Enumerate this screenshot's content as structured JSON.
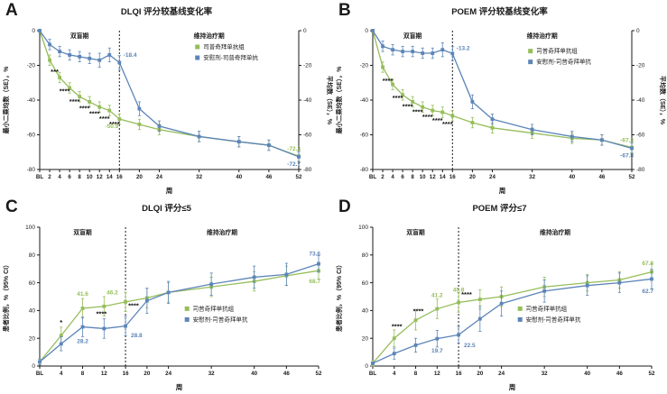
{
  "colors": {
    "green": "#96bd5a",
    "blue": "#5c85b8",
    "axis": "#1a1a1a",
    "sig": "#111111"
  },
  "chart_data": [
    {
      "id": "A",
      "type": "line",
      "title": "DLQI 评分较基线变化率",
      "xlabel": "周",
      "ylabel_left": "最小二乘均数（SE），%",
      "ylabel_right": "平均数（SE），%",
      "ylim": [
        -80,
        0
      ],
      "yticks": [
        0,
        -20,
        -40,
        -60,
        -80
      ],
      "x_max": 52,
      "xticks": [
        {
          "label": "BL",
          "week": 0
        },
        {
          "label": "2",
          "week": 2
        },
        {
          "label": "4",
          "week": 4
        },
        {
          "label": "6",
          "week": 6
        },
        {
          "label": "8",
          "week": 8
        },
        {
          "label": "10",
          "week": 10
        },
        {
          "label": "12",
          "week": 12
        },
        {
          "label": "14",
          "week": 14
        },
        {
          "label": "16",
          "week": 16
        },
        {
          "label": "20",
          "week": 20
        },
        {
          "label": "24",
          "week": 24
        },
        {
          "label": "32",
          "week": 32
        },
        {
          "label": "40",
          "week": 40
        },
        {
          "label": "46",
          "week": 46
        },
        {
          "label": "52",
          "week": 52
        }
      ],
      "phase_split_week": 16,
      "phase_labels": [
        "双盲期",
        "维持治疗期"
      ],
      "series": [
        {
          "name": "司普奇拜单抗组",
          "color_key": "green",
          "x": [
            0,
            2,
            4,
            6,
            8,
            10,
            12,
            14,
            16,
            20,
            24,
            32,
            40,
            46,
            52
          ],
          "y": [
            0,
            -17,
            -27,
            -33,
            -38,
            -41,
            -44,
            -46,
            -50.9,
            -54,
            -57,
            -61,
            -64,
            -66,
            -72.3
          ],
          "err": [
            0,
            3,
            3,
            3,
            3,
            3,
            3,
            3,
            3,
            3,
            3,
            3,
            3,
            3,
            3
          ]
        },
        {
          "name": "安慰剂-司普奇拜单抗",
          "color_key": "blue",
          "x": [
            0,
            2,
            4,
            6,
            8,
            10,
            12,
            14,
            16,
            20,
            24,
            32,
            40,
            46,
            52
          ],
          "y": [
            0,
            -8,
            -12,
            -14,
            -15,
            -16,
            -17,
            -14,
            -18.4,
            -45,
            -55,
            -61,
            -64,
            -66,
            -72.7
          ],
          "err": [
            0,
            3,
            3,
            3,
            3,
            3,
            4,
            4,
            4,
            4,
            3,
            3,
            3,
            3,
            3
          ]
        }
      ],
      "point_labels": [
        {
          "series": 0,
          "week": 16,
          "y": -55,
          "text": "-50.9",
          "anchor": "end",
          "dx": -1
        },
        {
          "series": 1,
          "week": 16.8,
          "y": -14,
          "text": "-18.4",
          "anchor": "start",
          "dx": 0
        },
        {
          "series": 0,
          "week": 52,
          "y": -68,
          "text": "-72.3",
          "anchor": "end",
          "dx": 2
        },
        {
          "series": 1,
          "week": 52,
          "y": -77,
          "text": "-72.7",
          "anchor": "end",
          "dx": 2
        }
      ],
      "sig_marks": [
        {
          "week": 3,
          "y": -25,
          "text": "***"
        },
        {
          "week": 5,
          "y": -36,
          "text": "****"
        },
        {
          "week": 7,
          "y": -42,
          "text": "****"
        },
        {
          "week": 9,
          "y": -46,
          "text": "****"
        },
        {
          "week": 11,
          "y": -49,
          "text": "****"
        },
        {
          "week": 13,
          "y": -52,
          "text": "****"
        },
        {
          "week": 15,
          "y": -55,
          "text": "****"
        }
      ],
      "legend": {
        "fx": 0.6,
        "fy": 0.13
      }
    },
    {
      "id": "B",
      "type": "line",
      "title": "POEM 评分较基线变化率",
      "xlabel": "周",
      "ylabel_left": "最小二乘均数（SE），%",
      "ylabel_right": "平均数（SE），%",
      "ylim": [
        -80,
        0
      ],
      "yticks": [
        0,
        -20,
        -40,
        -60,
        -80
      ],
      "x_max": 52,
      "xticks": [
        {
          "label": "BL",
          "week": 0
        },
        {
          "label": "2",
          "week": 2
        },
        {
          "label": "4",
          "week": 4
        },
        {
          "label": "6",
          "week": 6
        },
        {
          "label": "8",
          "week": 8
        },
        {
          "label": "10",
          "week": 10
        },
        {
          "label": "12",
          "week": 12
        },
        {
          "label": "14",
          "week": 14
        },
        {
          "label": "16",
          "week": 16
        },
        {
          "label": "20",
          "week": 20
        },
        {
          "label": "24",
          "week": 24
        },
        {
          "label": "32",
          "week": 32
        },
        {
          "label": "40",
          "week": 40
        },
        {
          "label": "46",
          "week": 46
        },
        {
          "label": "52",
          "week": 52
        }
      ],
      "phase_split_week": 16,
      "phase_labels": [
        "双盲期",
        "维持治疗期"
      ],
      "series": [
        {
          "name": "司普奇拜单抗组",
          "color_key": "green",
          "x": [
            0,
            2,
            4,
            6,
            8,
            10,
            12,
            14,
            16,
            20,
            24,
            32,
            40,
            46,
            52
          ],
          "y": [
            0,
            -21,
            -31,
            -37,
            -41,
            -44,
            -46,
            -47,
            -49,
            -53,
            -56,
            -59,
            -62,
            -63,
            -67.3
          ],
          "err": [
            0,
            3,
            3,
            3,
            3,
            3,
            3,
            3,
            3,
            3,
            3,
            3,
            3,
            3,
            3
          ]
        },
        {
          "name": "安慰剂-司普奇拜单抗",
          "color_key": "blue",
          "x": [
            0,
            2,
            4,
            6,
            8,
            10,
            12,
            14,
            16,
            20,
            24,
            32,
            40,
            46,
            52
          ],
          "y": [
            0,
            -9,
            -11,
            -12,
            -12,
            -13,
            -13,
            -11,
            -13.2,
            -41,
            -51,
            -57,
            -61,
            -63,
            -67.8
          ],
          "err": [
            0,
            3,
            3,
            3,
            3,
            3,
            3,
            4,
            4,
            4,
            3,
            3,
            3,
            3,
            3
          ]
        }
      ],
      "point_labels": [
        {
          "series": 1,
          "week": 16.8,
          "y": -10,
          "text": "-13.2",
          "anchor": "start",
          "dx": 0
        },
        {
          "series": 0,
          "week": 52,
          "y": -63,
          "text": "-67.3",
          "anchor": "end",
          "dx": 2
        },
        {
          "series": 1,
          "week": 52,
          "y": -72,
          "text": "-67.8",
          "anchor": "end",
          "dx": 2
        }
      ],
      "sig_marks": [
        {
          "week": 3,
          "y": -30,
          "text": "****"
        },
        {
          "week": 5,
          "y": -40,
          "text": "****"
        },
        {
          "week": 7,
          "y": -45,
          "text": "****"
        },
        {
          "week": 9,
          "y": -48,
          "text": "****"
        },
        {
          "week": 11,
          "y": -51,
          "text": "****"
        },
        {
          "week": 13,
          "y": -53,
          "text": "****"
        },
        {
          "week": 15,
          "y": -55,
          "text": "****"
        }
      ],
      "legend": {
        "fx": 0.6,
        "fy": 0.16
      }
    },
    {
      "id": "C",
      "type": "line",
      "title": "DLQI 评分≤5",
      "xlabel": "周",
      "ylabel_left": "患者比例，%（95% CI）",
      "ylabel_right": null,
      "ylim": [
        0,
        100
      ],
      "yticks": [
        0,
        20,
        40,
        60,
        80,
        100
      ],
      "x_max": 52,
      "xticks": [
        {
          "label": "BL",
          "week": 0
        },
        {
          "label": "4",
          "week": 4
        },
        {
          "label": "8",
          "week": 8
        },
        {
          "label": "12",
          "week": 12
        },
        {
          "label": "16",
          "week": 16
        },
        {
          "label": "20",
          "week": 20
        },
        {
          "label": "24",
          "week": 24
        },
        {
          "label": "32",
          "week": 32
        },
        {
          "label": "40",
          "week": 40
        },
        {
          "label": "46",
          "week": 46
        },
        {
          "label": "52",
          "week": 52
        }
      ],
      "phase_split_week": 16,
      "phase_labels": [
        "双盲期",
        "维持治疗期"
      ],
      "series": [
        {
          "name": "司普奇拜单抗组",
          "color_key": "green",
          "x": [
            0,
            4,
            8,
            12,
            16,
            20,
            24,
            32,
            40,
            46,
            52
          ],
          "y": [
            3,
            22,
            41.6,
            43,
            46.2,
            49,
            53,
            57,
            61,
            65,
            68.7
          ],
          "err": [
            2,
            6,
            7,
            7,
            7,
            7,
            7,
            7,
            7,
            7,
            6
          ]
        },
        {
          "name": "安慰剂-司普奇拜单抗",
          "color_key": "blue",
          "x": [
            0,
            4,
            8,
            12,
            16,
            20,
            24,
            32,
            40,
            46,
            52
          ],
          "y": [
            3,
            16,
            28.2,
            27,
            28.8,
            47,
            53,
            59,
            64,
            66,
            73.6
          ],
          "err": [
            2,
            5,
            7,
            7,
            7,
            9,
            8,
            8,
            8,
            8,
            6
          ]
        }
      ],
      "point_labels": [
        {
          "series": 0,
          "week": 8,
          "y": 52,
          "text": "41.6",
          "anchor": "middle",
          "dx": 0
        },
        {
          "series": 0,
          "week": 14.6,
          "y": 53,
          "text": "46.2",
          "anchor": "end",
          "dx": 0
        },
        {
          "series": 1,
          "week": 8,
          "y": 18,
          "text": "28.2",
          "anchor": "middle",
          "dx": 0
        },
        {
          "series": 1,
          "week": 17,
          "y": 22,
          "text": "28.8",
          "anchor": "start",
          "dx": 0
        },
        {
          "series": 1,
          "week": 52,
          "y": 81,
          "text": "73.6",
          "anchor": "end",
          "dx": 2
        },
        {
          "series": 0,
          "week": 52,
          "y": 61,
          "text": "68.7",
          "anchor": "end",
          "dx": 2
        }
      ],
      "sig_marks": [
        {
          "week": 4,
          "y": 30,
          "text": "*"
        },
        {
          "week": 11.5,
          "y": 36,
          "text": "****"
        },
        {
          "week": 17.5,
          "y": 42,
          "text": "****"
        }
      ],
      "legend": {
        "fx": 0.52,
        "fy": 0.6
      }
    },
    {
      "id": "D",
      "type": "line",
      "title": "POEM 评分≤7",
      "xlabel": "周",
      "ylabel_left": "患者比例，%（95% CI）",
      "ylabel_right": null,
      "ylim": [
        0,
        100
      ],
      "yticks": [
        0,
        20,
        40,
        60,
        80,
        100
      ],
      "x_max": 52,
      "xticks": [
        {
          "label": "BL",
          "week": 0
        },
        {
          "label": "4",
          "week": 4
        },
        {
          "label": "8",
          "week": 8
        },
        {
          "label": "12",
          "week": 12
        },
        {
          "label": "16",
          "week": 16
        },
        {
          "label": "20",
          "week": 20
        },
        {
          "label": "24",
          "week": 24
        },
        {
          "label": "32",
          "week": 32
        },
        {
          "label": "40",
          "week": 40
        },
        {
          "label": "46",
          "week": 46
        },
        {
          "label": "52",
          "week": 52
        }
      ],
      "phase_split_week": 16,
      "phase_labels": [
        "双盲期",
        "维持治疗期"
      ],
      "series": [
        {
          "name": "司普奇拜单抗组",
          "color_key": "green",
          "x": [
            0,
            4,
            8,
            12,
            16,
            20,
            24,
            32,
            40,
            46,
            52
          ],
          "y": [
            2,
            20,
            33,
            41.2,
            45.8,
            48,
            50,
            57,
            60,
            62,
            67.8
          ],
          "err": [
            2,
            6,
            7,
            7,
            7,
            7,
            7,
            7,
            6,
            6,
            6
          ]
        },
        {
          "name": "安慰剂-司普奇拜单抗",
          "color_key": "blue",
          "x": [
            0,
            4,
            8,
            12,
            16,
            20,
            24,
            32,
            40,
            46,
            52
          ],
          "y": [
            2,
            9,
            15,
            19.7,
            22.5,
            34,
            45,
            54,
            58,
            60,
            62.7
          ],
          "err": [
            1,
            4,
            5,
            6,
            6,
            9,
            9,
            8,
            7,
            7,
            7
          ]
        }
      ],
      "point_labels": [
        {
          "series": 0,
          "week": 12,
          "y": 51,
          "text": "41.2",
          "anchor": "middle",
          "dx": 0
        },
        {
          "series": 0,
          "week": 16,
          "y": 55,
          "text": "45.8",
          "anchor": "middle",
          "dx": 0
        },
        {
          "series": 1,
          "week": 12,
          "y": 11,
          "text": "19.7",
          "anchor": "middle",
          "dx": 0
        },
        {
          "series": 1,
          "week": 17,
          "y": 15,
          "text": "22.5",
          "anchor": "start",
          "dx": 0
        },
        {
          "series": 0,
          "week": 52,
          "y": 74,
          "text": "67.8",
          "anchor": "end",
          "dx": 2
        },
        {
          "series": 1,
          "week": 52,
          "y": 54,
          "text": "62.7",
          "anchor": "end",
          "dx": 2
        }
      ],
      "sig_marks": [
        {
          "week": 4.5,
          "y": 27,
          "text": "****"
        },
        {
          "week": 8.5,
          "y": 38,
          "text": "****"
        },
        {
          "week": 17.5,
          "y": 50,
          "text": "****"
        }
      ],
      "legend": {
        "fx": 0.52,
        "fy": 0.6
      }
    }
  ]
}
